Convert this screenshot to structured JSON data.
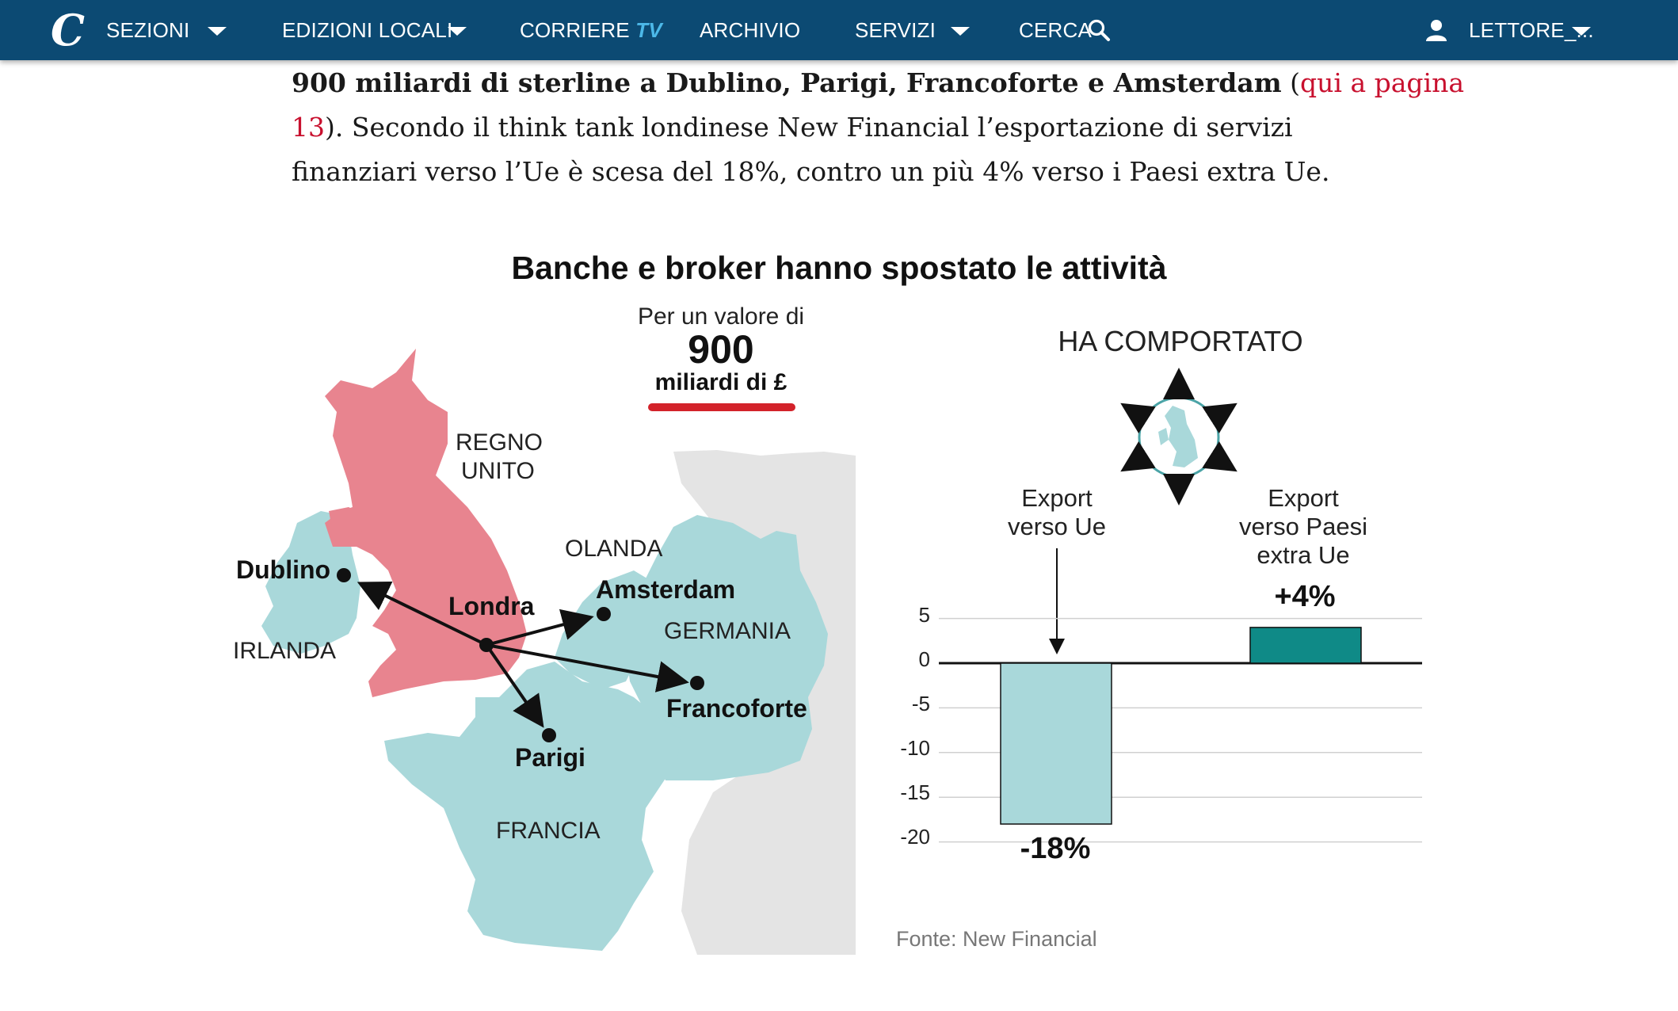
{
  "nav": {
    "logo": "C",
    "items": [
      {
        "label": "SEZIONI"
      },
      {
        "label": "EDIZIONI LOCALI"
      },
      {
        "label": "CORRIERE"
      },
      {
        "label": "ARCHIVIO"
      },
      {
        "label": "SERVIZI"
      },
      {
        "label": "CERCA"
      }
    ],
    "tv": "TV",
    "user": "LETTORE_...",
    "icons": [
      "caret-down-icon",
      "search-icon",
      "user-icon"
    ]
  },
  "article": {
    "line1_bold": "900 miliardi di sterline a Dublino, Parigi, Francoforte e Amsterdam",
    "line1_paren": " (",
    "line1_link": "qui a pagina",
    "line2_link": "13",
    "line2_text": "). Secondo il think tank londinese New Financial l’esportazione di servizi",
    "line3_text": "finanziari verso l’Ue è scesa del 18%, contro un più 4% verso i Paesi extra Ue."
  },
  "infographic": {
    "title": "Banche e broker hanno spostato le attività",
    "valore": {
      "intro": "Per un valore di",
      "amount": "900",
      "unit": "miliardi di £"
    },
    "map": {
      "countries": [
        "REGNO",
        "UNITO",
        "IRLANDA",
        "OLANDA",
        "GERMANIA",
        "FRANCIA"
      ],
      "cities": [
        "Londra",
        "Dublino",
        "Amsterdam",
        "Parigi",
        "Francoforte"
      ],
      "colors": {
        "uk": "#e8848f",
        "eu": "#a9d8da",
        "other": "#e4e4e4"
      }
    },
    "comportato": "HA COMPORTATO",
    "source": "Fonte: New Financial"
  },
  "chart_data": {
    "type": "bar",
    "categories": [
      "Export verso Ue",
      "Export verso Paesi extra Ue"
    ],
    "category_lines": [
      [
        "Export",
        "verso Ue"
      ],
      [
        "Export",
        "verso Paesi",
        "extra Ue"
      ]
    ],
    "values": [
      -18,
      4
    ],
    "value_labels": [
      "-18%",
      "+4%"
    ],
    "yticks": [
      5,
      0,
      -5,
      -10,
      -15,
      -20
    ],
    "ytick_labels": [
      "5",
      "0",
      "-5",
      "-10",
      "-15",
      "-20"
    ],
    "ylim": [
      -20,
      5
    ],
    "colors": [
      "#a9d8da",
      "#0f8a87"
    ],
    "grid": true
  }
}
